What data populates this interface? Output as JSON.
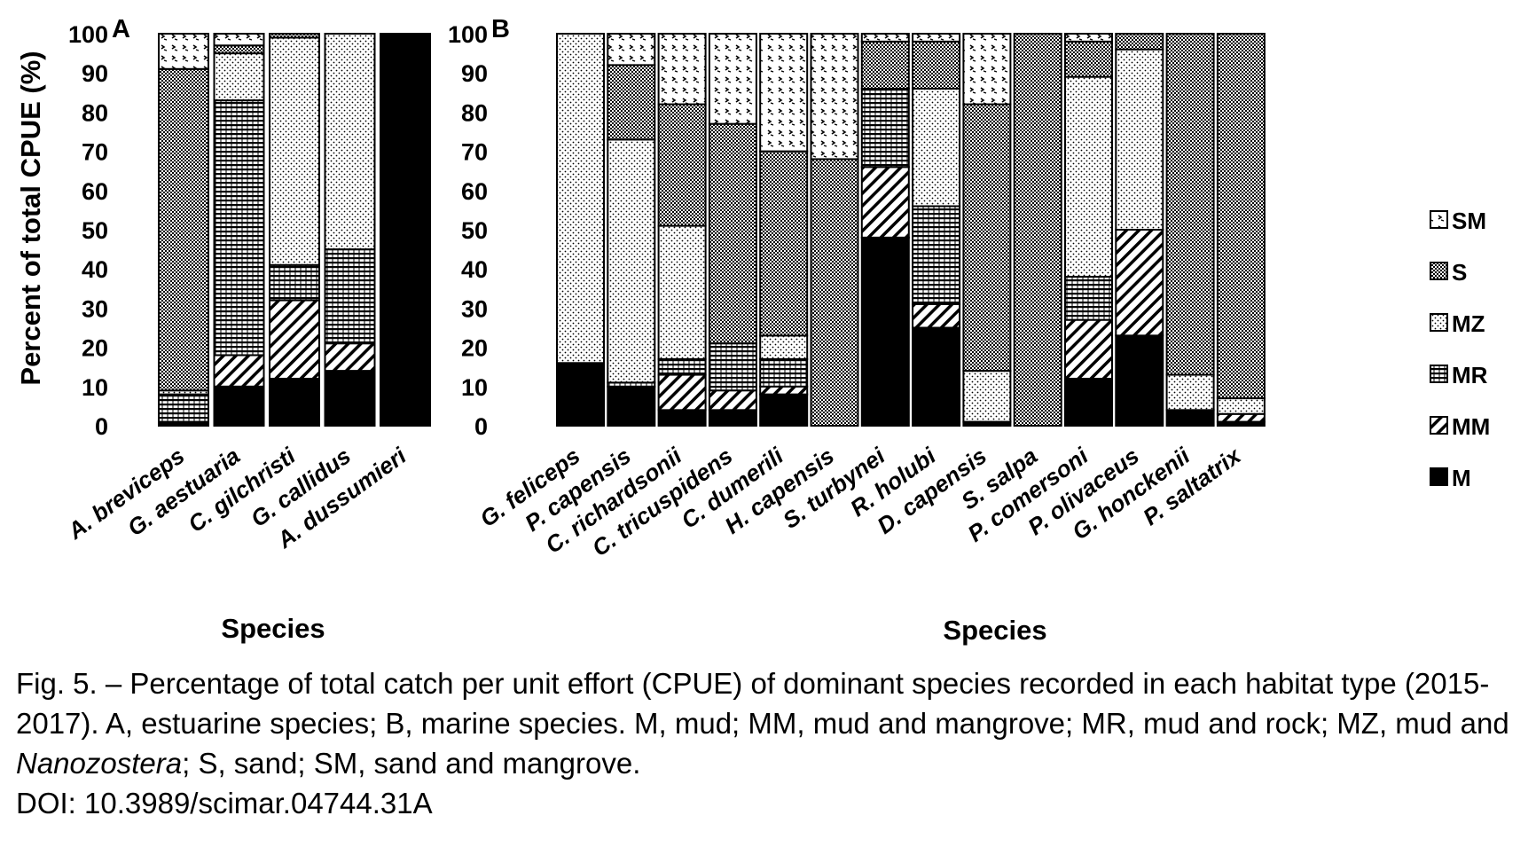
{
  "chart_data": [
    {
      "panel": "A",
      "type": "bar",
      "stacked": true,
      "orientation": "vertical",
      "categories": [
        "A. breviceps",
        "G. aestuaria",
        "C. gilchristi",
        "G. callidus",
        "A. dussumieri"
      ],
      "series": [
        {
          "name": "M",
          "values": [
            1,
            10,
            12,
            14,
            100
          ]
        },
        {
          "name": "MM",
          "values": [
            0,
            8,
            20,
            7,
            0
          ]
        },
        {
          "name": "MR",
          "values": [
            7,
            65,
            9,
            24,
            0
          ]
        },
        {
          "name": "MZ",
          "values": [
            1,
            12,
            58,
            55,
            0
          ]
        },
        {
          "name": "S",
          "values": [
            82,
            2,
            1,
            0,
            0
          ]
        },
        {
          "name": "SM",
          "values": [
            9,
            3,
            0,
            0,
            0
          ]
        }
      ],
      "xlabel": "Species",
      "ylabel": "Percent of total CPUE (%)",
      "ylim": [
        0,
        100
      ],
      "yticks": [
        0,
        10,
        20,
        30,
        40,
        50,
        60,
        70,
        80,
        90,
        100
      ],
      "grid": false
    },
    {
      "panel": "B",
      "type": "bar",
      "stacked": true,
      "orientation": "vertical",
      "categories": [
        "G. feliceps",
        "P. capensis",
        "C. richardsonii",
        "C. tricuspidens",
        "C. dumerili",
        "H. capensis",
        "S. turbynei",
        "R. holubi",
        "D. capensis",
        "S. salpa",
        "P. comersoni",
        "P. olivaceus",
        "G. honckenii",
        "P. saltatrix"
      ],
      "series": [
        {
          "name": "M",
          "values": [
            16,
            10,
            4,
            4,
            8,
            0,
            48,
            25,
            1,
            0,
            12,
            23,
            4,
            1
          ]
        },
        {
          "name": "MM",
          "values": [
            0,
            0,
            9,
            5,
            2,
            0,
            18,
            6,
            0,
            0,
            15,
            27,
            0,
            2
          ]
        },
        {
          "name": "MR",
          "values": [
            0,
            1,
            4,
            12,
            7,
            0,
            20,
            25,
            0,
            0,
            11,
            0,
            0,
            0
          ]
        },
        {
          "name": "MZ",
          "values": [
            84,
            62,
            34,
            0,
            6,
            0,
            0,
            30,
            13,
            0,
            51,
            46,
            9,
            4
          ]
        },
        {
          "name": "S",
          "values": [
            0,
            19,
            31,
            56,
            47,
            68,
            12,
            12,
            68,
            100,
            9,
            4,
            87,
            93
          ]
        },
        {
          "name": "SM",
          "values": [
            0,
            8,
            18,
            23,
            30,
            32,
            2,
            2,
            18,
            0,
            2,
            0,
            0,
            0
          ]
        }
      ],
      "xlabel": "Species",
      "ylim": [
        0,
        100
      ],
      "yticks": [
        0,
        10,
        20,
        30,
        40,
        50,
        60,
        70,
        80,
        90,
        100
      ],
      "grid": false
    }
  ],
  "legend": {
    "placement": "right",
    "order": [
      "SM",
      "S",
      "MZ",
      "MR",
      "MM",
      "M"
    ]
  },
  "caption": {
    "part1": "Fig. 5. – Percentage of total catch per unit effort (CPUE) of dominant species recorded in each habitat type (2015-2017). A, estuarine species; B, marine species. M, mud; MM, mud and mangrove; MR, mud and rock; MZ, mud and ",
    "italic": "Nanozostera",
    "part2": "; S, sand; SM, sand and mangrove.",
    "doi": "DOI: 10.3989/scimar.04744.31A"
  }
}
